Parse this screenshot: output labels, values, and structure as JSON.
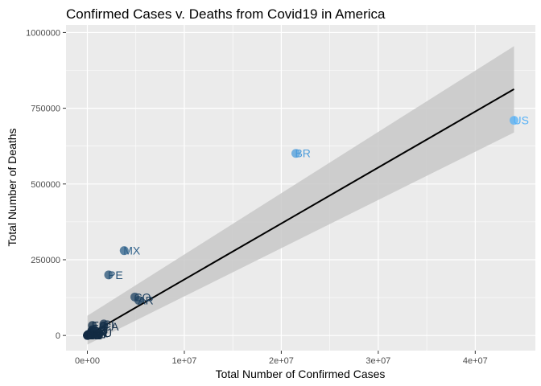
{
  "chart_data": {
    "type": "scatter",
    "title": "Confirmed Cases v. Deaths from Covid19 in America",
    "xlabel": "Total Number of Confirmed Cases",
    "ylabel": "Total Number of Deaths",
    "xlim": [
      -2200000,
      46200000
    ],
    "ylim": [
      -50000,
      1025000
    ],
    "x_ticks": [
      0,
      10000000,
      20000000,
      30000000,
      40000000
    ],
    "x_tick_labels": [
      "0e+00",
      "1e+07",
      "2e+07",
      "3e+07",
      "4e+07"
    ],
    "y_ticks": [
      0,
      250000,
      500000,
      750000,
      1000000
    ],
    "y_tick_labels": [
      "0",
      "250000",
      "500000",
      "750000",
      "1000000"
    ],
    "grid": true,
    "legend": "none",
    "colors": {
      "low": "#132b43",
      "high": "#56b1f7",
      "panel": "#ebebeb",
      "band": "#c8c8c8",
      "line": "#000000"
    },
    "trend": {
      "x": [
        0,
        44000000
      ],
      "y": [
        0,
        813000
      ],
      "ci_low": [
        -30000,
        670000
      ],
      "ci_high": [
        65000,
        955000
      ]
    },
    "points": [
      {
        "label": "US",
        "x": 44000000,
        "y": 710000
      },
      {
        "label": "BR",
        "x": 21500000,
        "y": 601000
      },
      {
        "label": "MX",
        "x": 3800000,
        "y": 280000
      },
      {
        "label": "PE",
        "x": 2200000,
        "y": 200000
      },
      {
        "label": "CO",
        "x": 4900000,
        "y": 127000
      },
      {
        "label": "AR",
        "x": 5300000,
        "y": 116000
      },
      {
        "label": "EC",
        "x": 520000,
        "y": 33000
      },
      {
        "label": "CL",
        "x": 1700000,
        "y": 38000
      },
      {
        "label": "GT",
        "x": 600000,
        "y": 15000
      },
      {
        "label": "CA",
        "x": 1700000,
        "y": 29000
      },
      {
        "label": "BO",
        "x": 510000,
        "y": 19000
      },
      {
        "label": "PY",
        "x": 470000,
        "y": 16000
      },
      {
        "label": "HN",
        "x": 380000,
        "y": 10000
      },
      {
        "label": "PA",
        "x": 470000,
        "y": 7300
      },
      {
        "label": "CR",
        "x": 560000,
        "y": 7000
      },
      {
        "label": "DO",
        "x": 370000,
        "y": 4200
      },
      {
        "label": "VE",
        "x": 400000,
        "y": 4800
      },
      {
        "label": "UY",
        "x": 390000,
        "y": 6100
      },
      {
        "label": "SV",
        "x": 120000,
        "y": 3800
      },
      {
        "label": "CU",
        "x": 950000,
        "y": 8200
      },
      {
        "label": "JM",
        "x": 90000,
        "y": 2400
      },
      {
        "label": "HT",
        "x": 25000,
        "y": 750
      },
      {
        "label": "NI",
        "x": 16000,
        "y": 200
      },
      {
        "label": "TT",
        "x": 60000,
        "y": 1800
      },
      {
        "label": "BS",
        "x": 22000,
        "y": 650
      },
      {
        "label": "BZ",
        "x": 25000,
        "y": 550
      },
      {
        "label": "GY",
        "x": 37000,
        "y": 950
      },
      {
        "label": "SR",
        "x": 50000,
        "y": 1100
      },
      {
        "label": "BB",
        "x": 20000,
        "y": 200
      },
      {
        "label": "LC",
        "x": 13000,
        "y": 280
      }
    ]
  }
}
